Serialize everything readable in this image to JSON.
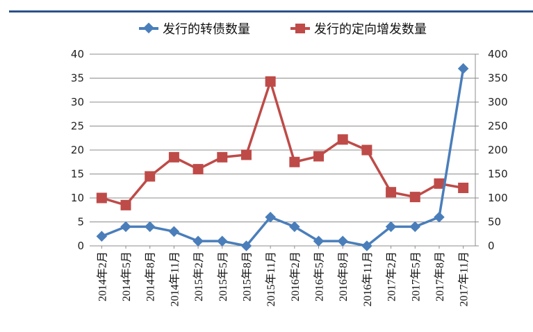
{
  "legend": {
    "series1": "发行的转债数量",
    "series2": "发行的定向增发数量"
  },
  "colors": {
    "series1": "#4a7ebb",
    "series2": "#be4b48",
    "topbar": "#2a5189",
    "grid": "#8c8c8c"
  },
  "chart_data": {
    "type": "line",
    "title": "",
    "categories": [
      "2014年2月",
      "2014年5月",
      "2014年8月",
      "2014年11月",
      "2015年2月",
      "2015年5月",
      "2015年8月",
      "2015年11月",
      "2016年2月",
      "2016年5月",
      "2016年8月",
      "2016年11月",
      "2017年2月",
      "2017年5月",
      "2017年8月",
      "2017年11月"
    ],
    "series": [
      {
        "name": "发行的转债数量",
        "axis": "left",
        "marker": "diamond",
        "values": [
          2,
          4,
          4,
          3,
          1,
          1,
          0,
          6,
          4,
          1,
          1,
          0,
          4,
          4,
          6,
          37
        ]
      },
      {
        "name": "发行的定向增发数量",
        "axis": "right",
        "marker": "square",
        "values": [
          100,
          85,
          145,
          185,
          160,
          185,
          190,
          343,
          175,
          187,
          222,
          200,
          112,
          102,
          130,
          121
        ]
      }
    ],
    "y_left": {
      "ylim": [
        0,
        40
      ],
      "ticks": [
        "0",
        "5",
        "10",
        "15",
        "20",
        "25",
        "30",
        "35",
        "40"
      ]
    },
    "y_right": {
      "ylim": [
        0,
        400
      ],
      "ticks": [
        "0",
        "50",
        "100",
        "150",
        "200",
        "250",
        "300",
        "350",
        "400"
      ]
    },
    "xlabel": "",
    "ylabel": "",
    "grid": true,
    "legend_position": "top"
  }
}
